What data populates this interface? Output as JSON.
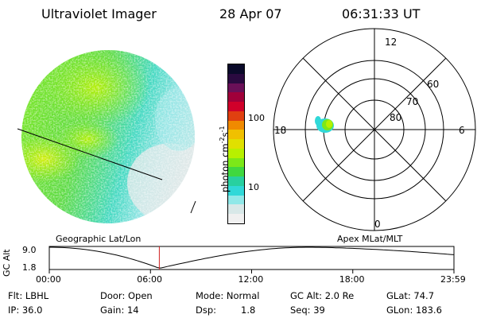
{
  "header": {
    "instrument": "Ultraviolet Imager",
    "date": "28 Apr 07",
    "time": "06:31:33 UT"
  },
  "colorbar": {
    "label": "photon cm",
    "label_sup1": "-2",
    "label_mid": "s",
    "label_sup2": "-1",
    "ticks": [
      "100",
      "10"
    ],
    "colors": [
      "#0a0a2a",
      "#2a0a40",
      "#6a1058",
      "#a0003a",
      "#d0002a",
      "#e04010",
      "#f08a00",
      "#f0c000",
      "#e0e000",
      "#b8f000",
      "#7ce818",
      "#40d840",
      "#28d0a0",
      "#30d8d8",
      "#90e8e8",
      "#d8e8e8",
      "#f0f0f0"
    ]
  },
  "polar": {
    "mlt_labels": {
      "top": "12",
      "right": "6",
      "bottom": "0",
      "left": "18"
    },
    "lat_labels": [
      "60",
      "70",
      "80"
    ]
  },
  "timeline": {
    "left_label": "Geographic Lat/Lon",
    "right_label": "Apex MLat/MLT",
    "ylabel": "GC Alt",
    "ymax": "9.0",
    "ymin": "1.8",
    "ticks": [
      "00:00",
      "06:00",
      "12:00",
      "18:00",
      "23:59"
    ],
    "current_time_fraction": 0.2719
  },
  "info": {
    "flt": "Flt: LBHL",
    "ip": "IP: 36.0",
    "door": "Door: Open",
    "gain": "Gain: 14",
    "mode": "Mode: Normal",
    "dsp_label": "Dsp:",
    "dsp_value": "1.8",
    "gcalt": "GC Alt: 2.0 Re",
    "seq": "Seq: 39",
    "glat": "GLat: 74.7",
    "glon": "GLon: 183.6"
  }
}
